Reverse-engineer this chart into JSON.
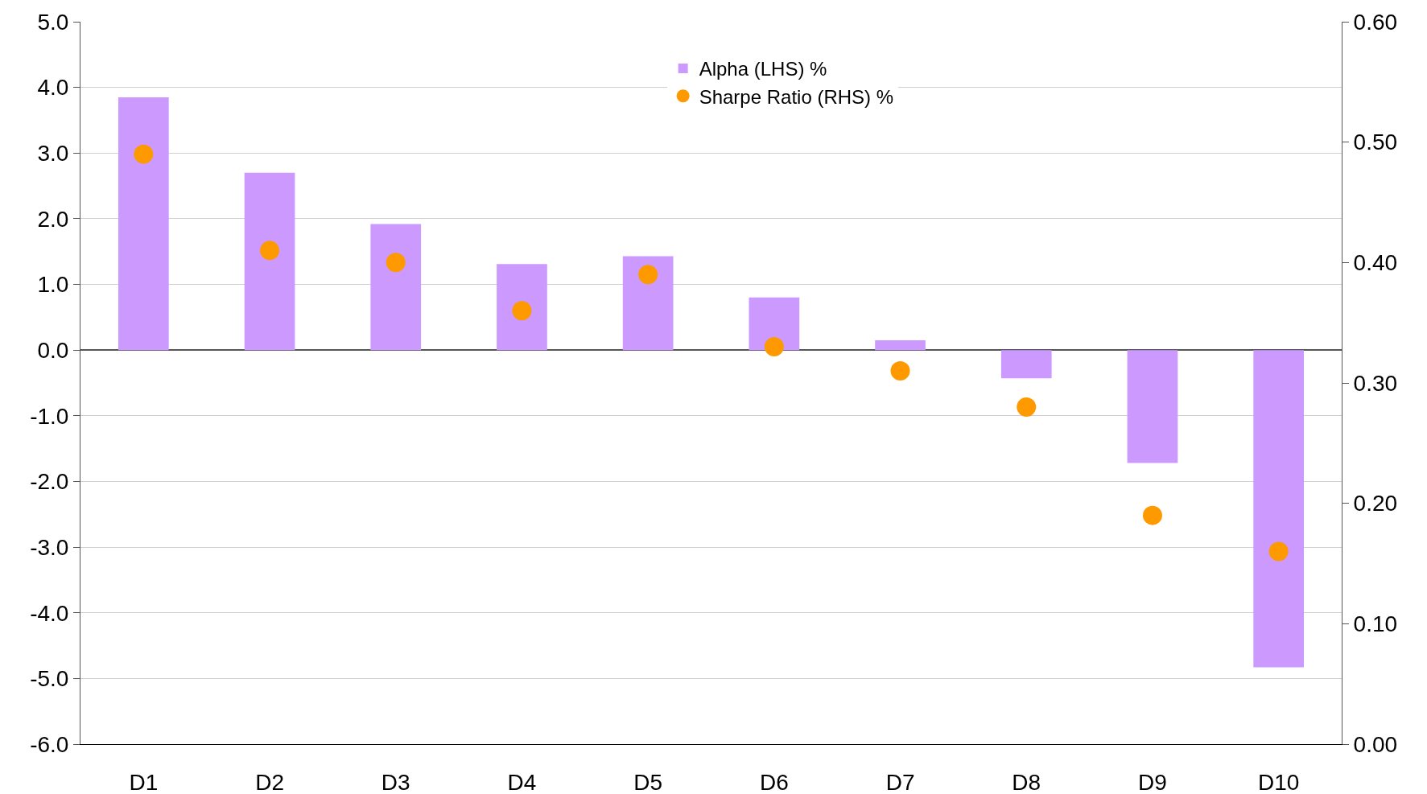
{
  "chart_data": {
    "type": "bar",
    "categories": [
      "D1",
      "D2",
      "D3",
      "D4",
      "D5",
      "D6",
      "D7",
      "D8",
      "D9",
      "D10"
    ],
    "series": [
      {
        "name": "Alpha (LHS) %",
        "color": "#cc99ff",
        "values": [
          3.85,
          2.7,
          1.92,
          1.31,
          1.43,
          0.8,
          0.15,
          -0.43,
          -1.72,
          -4.83
        ]
      },
      {
        "name": "Sharpe Ratio (RHS) %",
        "type": "scatter",
        "axis": "y2",
        "color": "#ff9900",
        "values": [
          0.49,
          0.41,
          0.4,
          0.36,
          0.39,
          0.33,
          0.31,
          0.28,
          0.19,
          0.16
        ]
      }
    ],
    "ylim": [
      -6,
      5
    ],
    "yticks": [
      {
        "value": -6,
        "label": "-6.0"
      },
      {
        "value": -5,
        "label": "-5.0"
      },
      {
        "value": -4,
        "label": "-4.0"
      },
      {
        "value": -3,
        "label": "-3.0"
      },
      {
        "value": -2,
        "label": "-2.0"
      },
      {
        "value": -1,
        "label": "-1.0"
      },
      {
        "value": 0,
        "label": "0.0"
      },
      {
        "value": 1,
        "label": "1.0"
      },
      {
        "value": 2,
        "label": "2.0"
      },
      {
        "value": 3,
        "label": "3.0"
      },
      {
        "value": 4,
        "label": "4.0"
      },
      {
        "value": 5,
        "label": "5.0"
      }
    ],
    "y2lim": [
      0,
      0.6
    ],
    "y2ticks": [
      {
        "value": 0,
        "label": "0.00"
      },
      {
        "value": 0.1,
        "label": "0.10"
      },
      {
        "value": 0.2,
        "label": "0.20"
      },
      {
        "value": 0.3,
        "label": "0.30"
      },
      {
        "value": 0.4,
        "label": "0.40"
      },
      {
        "value": 0.5,
        "label": "0.50"
      },
      {
        "value": 0.6,
        "label": "0.60"
      }
    ],
    "grid": "y",
    "legend": "top",
    "marker": "circle"
  }
}
